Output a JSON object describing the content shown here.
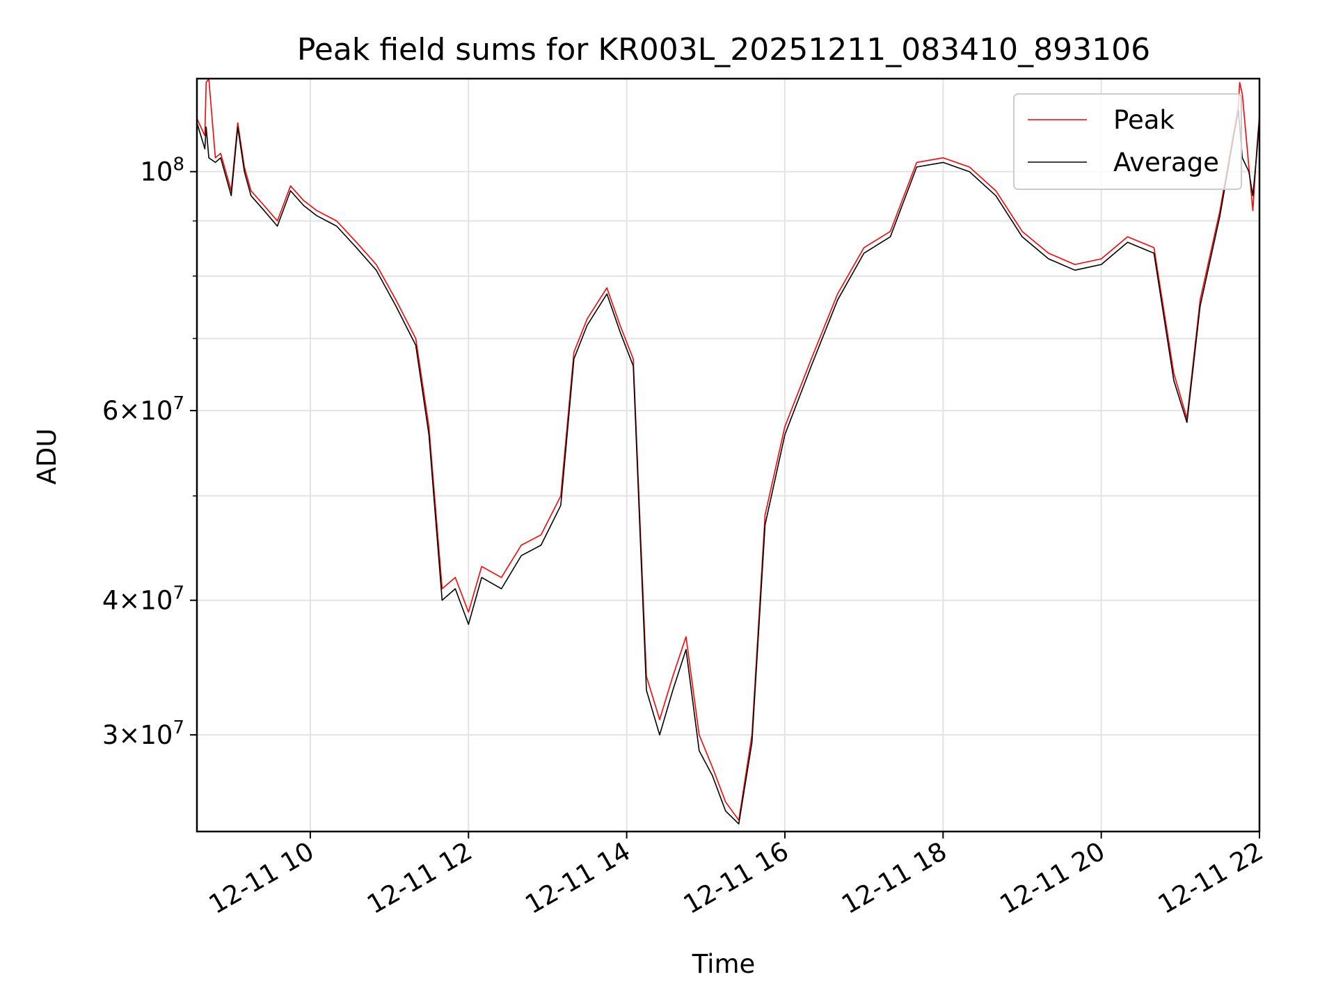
{
  "chart_data": {
    "type": "line",
    "title": "Peak field sums for KR003L_20251211_083410_893106",
    "xlabel": "Time",
    "ylabel": "ADU",
    "y_scale": "log",
    "xlim": [
      "2025-12-11 08:34",
      "2025-12-11 22:00"
    ],
    "ylim": [
      24400000,
      122000000
    ],
    "grid": true,
    "legend_position": "top-right",
    "x_ticks": [
      {
        "value": "2025-12-11 10:00",
        "label": "12-11 10"
      },
      {
        "value": "2025-12-11 12:00",
        "label": "12-11 12"
      },
      {
        "value": "2025-12-11 14:00",
        "label": "12-11 14"
      },
      {
        "value": "2025-12-11 16:00",
        "label": "12-11 16"
      },
      {
        "value": "2025-12-11 18:00",
        "label": "12-11 18"
      },
      {
        "value": "2025-12-11 20:00",
        "label": "12-11 20"
      },
      {
        "value": "2025-12-11 22:00",
        "label": "12-11 22"
      }
    ],
    "y_major_ticks": [
      {
        "value": 30000000,
        "mant": "3",
        "exp": "7"
      },
      {
        "value": 40000000,
        "mant": "4",
        "exp": "7"
      },
      {
        "value": 60000000,
        "mant": "6",
        "exp": "7"
      },
      {
        "value": 100000000,
        "mant": "",
        "exp": "8"
      }
    ],
    "y_minor_ticks": [
      50000000,
      70000000,
      80000000,
      90000000
    ],
    "series": [
      {
        "name": "Peak",
        "color": "#ff0000",
        "x": [
          "2025-12-11 08:34",
          "2025-12-11 08:40",
          "2025-12-11 08:41",
          "2025-12-11 08:43",
          "2025-12-11 08:48",
          "2025-12-11 08:52",
          "2025-12-11 09:00",
          "2025-12-11 09:05",
          "2025-12-11 09:10",
          "2025-12-11 09:15",
          "2025-12-11 09:25",
          "2025-12-11 09:35",
          "2025-12-11 09:45",
          "2025-12-11 09:55",
          "2025-12-11 10:05",
          "2025-12-11 10:20",
          "2025-12-11 10:35",
          "2025-12-11 10:50",
          "2025-12-11 11:05",
          "2025-12-11 11:20",
          "2025-12-11 11:30",
          "2025-12-11 11:40",
          "2025-12-11 11:50",
          "2025-12-11 12:00",
          "2025-12-11 12:10",
          "2025-12-11 12:25",
          "2025-12-11 12:40",
          "2025-12-11 12:55",
          "2025-12-11 13:10",
          "2025-12-11 13:20",
          "2025-12-11 13:30",
          "2025-12-11 13:45",
          "2025-12-11 13:55",
          "2025-12-11 14:05",
          "2025-12-11 14:15",
          "2025-12-11 14:25",
          "2025-12-11 14:35",
          "2025-12-11 14:45",
          "2025-12-11 14:55",
          "2025-12-11 15:05",
          "2025-12-11 15:15",
          "2025-12-11 15:25",
          "2025-12-11 15:35",
          "2025-12-11 15:45",
          "2025-12-11 16:00",
          "2025-12-11 16:20",
          "2025-12-11 16:40",
          "2025-12-11 17:00",
          "2025-12-11 17:20",
          "2025-12-11 17:40",
          "2025-12-11 18:00",
          "2025-12-11 18:20",
          "2025-12-11 18:40",
          "2025-12-11 19:00",
          "2025-12-11 19:20",
          "2025-12-11 19:40",
          "2025-12-11 20:00",
          "2025-12-11 20:20",
          "2025-12-11 20:40",
          "2025-12-11 20:55",
          "2025-12-11 21:05",
          "2025-12-11 21:15",
          "2025-12-11 21:30",
          "2025-12-11 21:40",
          "2025-12-11 21:44",
          "2025-12-11 21:45",
          "2025-12-11 21:47",
          "2025-12-11 21:52",
          "2025-12-11 21:55",
          "2025-12-11 21:58",
          "2025-12-11 22:00"
        ],
        "y": [
          112000000,
          108000000,
          121000000,
          122000000,
          103000000,
          104000000,
          96000000,
          111000000,
          101000000,
          96000000,
          93000000,
          90000000,
          97000000,
          94000000,
          92000000,
          90000000,
          86000000,
          82000000,
          76000000,
          70000000,
          58000000,
          41000000,
          42000000,
          39000000,
          43000000,
          42000000,
          45000000,
          46000000,
          50000000,
          68000000,
          73000000,
          78000000,
          72000000,
          67000000,
          34000000,
          31000000,
          34000000,
          37000000,
          30000000,
          28000000,
          26000000,
          25000000,
          30000000,
          48000000,
          58000000,
          67000000,
          77000000,
          85000000,
          88000000,
          102000000,
          103000000,
          101000000,
          96000000,
          88000000,
          84000000,
          82000000,
          83000000,
          87000000,
          85000000,
          65000000,
          59000000,
          76000000,
          92000000,
          108000000,
          115000000,
          121000000,
          118000000,
          101000000,
          92000000,
          105000000,
          113000000
        ]
      },
      {
        "name": "Average",
        "color": "#000000",
        "x": [
          "2025-12-11 08:34",
          "2025-12-11 08:40",
          "2025-12-11 08:41",
          "2025-12-11 08:43",
          "2025-12-11 08:48",
          "2025-12-11 08:52",
          "2025-12-11 09:00",
          "2025-12-11 09:05",
          "2025-12-11 09:10",
          "2025-12-11 09:15",
          "2025-12-11 09:25",
          "2025-12-11 09:35",
          "2025-12-11 09:45",
          "2025-12-11 09:55",
          "2025-12-11 10:05",
          "2025-12-11 10:20",
          "2025-12-11 10:35",
          "2025-12-11 10:50",
          "2025-12-11 11:05",
          "2025-12-11 11:20",
          "2025-12-11 11:30",
          "2025-12-11 11:40",
          "2025-12-11 11:50",
          "2025-12-11 12:00",
          "2025-12-11 12:10",
          "2025-12-11 12:25",
          "2025-12-11 12:40",
          "2025-12-11 12:55",
          "2025-12-11 13:10",
          "2025-12-11 13:20",
          "2025-12-11 13:30",
          "2025-12-11 13:45",
          "2025-12-11 13:55",
          "2025-12-11 14:05",
          "2025-12-11 14:15",
          "2025-12-11 14:25",
          "2025-12-11 14:35",
          "2025-12-11 14:45",
          "2025-12-11 14:55",
          "2025-12-11 15:05",
          "2025-12-11 15:15",
          "2025-12-11 15:25",
          "2025-12-11 15:35",
          "2025-12-11 15:45",
          "2025-12-11 16:00",
          "2025-12-11 16:20",
          "2025-12-11 16:40",
          "2025-12-11 17:00",
          "2025-12-11 17:20",
          "2025-12-11 17:40",
          "2025-12-11 18:00",
          "2025-12-11 18:20",
          "2025-12-11 18:40",
          "2025-12-11 19:00",
          "2025-12-11 19:20",
          "2025-12-11 19:40",
          "2025-12-11 20:00",
          "2025-12-11 20:20",
          "2025-12-11 20:40",
          "2025-12-11 20:55",
          "2025-12-11 21:05",
          "2025-12-11 21:15",
          "2025-12-11 21:30",
          "2025-12-11 21:40",
          "2025-12-11 21:44",
          "2025-12-11 21:45",
          "2025-12-11 21:47",
          "2025-12-11 21:52",
          "2025-12-11 21:55",
          "2025-12-11 21:58",
          "2025-12-11 22:00"
        ],
        "y": [
          111000000,
          105000000,
          110000000,
          103000000,
          102000000,
          103000000,
          95000000,
          110000000,
          100000000,
          95000000,
          92000000,
          89000000,
          96000000,
          93000000,
          91000000,
          89000000,
          85000000,
          81000000,
          75000000,
          69000000,
          57000000,
          40000000,
          41000000,
          38000000,
          42000000,
          41000000,
          44000000,
          45000000,
          49000000,
          67000000,
          72000000,
          77000000,
          71000000,
          66000000,
          33000000,
          30000000,
          33000000,
          36000000,
          29000000,
          27500000,
          25500000,
          24800000,
          29500000,
          47000000,
          57000000,
          66000000,
          76000000,
          84000000,
          87000000,
          101000000,
          102000000,
          100000000,
          95000000,
          87000000,
          83000000,
          81000000,
          82000000,
          86000000,
          84000000,
          64000000,
          58500000,
          75000000,
          91000000,
          107000000,
          114000000,
          110000000,
          103000000,
          100000000,
          95000000,
          104000000,
          112000000
        ]
      }
    ]
  }
}
